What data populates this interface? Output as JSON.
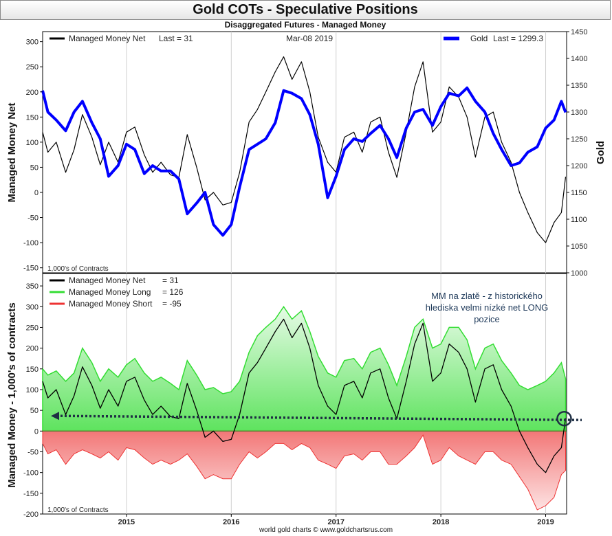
{
  "title": "Gold COTs - Speculative Positions",
  "subtitle": "Disaggregated Futures - Managed Money",
  "credit": "world gold charts © www.goldchartsrus.com",
  "colors": {
    "net": "#000000",
    "gold": "#0000ff",
    "long": "#33dd33",
    "short": "#ee3333",
    "annotation": "#1f3a5a"
  },
  "chart_data": [
    {
      "type": "line",
      "title": "",
      "date_label": "Mar-08  2019",
      "unit_note": "1,000's of Contracts",
      "ylabel": "Managed Money Net",
      "ylabel_right": "Gold",
      "xticks": [
        "2015",
        "2016",
        "2017",
        "2018",
        "2019"
      ],
      "x_range": [
        2014.2,
        2019.2
      ],
      "ylim": [
        -160,
        320
      ],
      "yticks": [
        -150,
        -100,
        -50,
        0,
        50,
        100,
        150,
        200,
        250,
        300
      ],
      "ylim_right": [
        1000,
        1450
      ],
      "yticks_right": [
        1000,
        1050,
        1100,
        1150,
        1200,
        1250,
        1300,
        1350,
        1400,
        1450
      ],
      "legend": [
        {
          "label": "Managed Money Net",
          "last_label": "Last = 31"
        },
        {
          "label": "Gold",
          "last_label": "Last = 1299.3"
        }
      ],
      "series": [
        {
          "name": "Managed Money Net",
          "axis": "left",
          "x": [
            2014.2,
            2014.25,
            2014.33,
            2014.42,
            2014.5,
            2014.58,
            2014.67,
            2014.75,
            2014.83,
            2014.92,
            2015.0,
            2015.08,
            2015.17,
            2015.25,
            2015.33,
            2015.42,
            2015.5,
            2015.58,
            2015.67,
            2015.75,
            2015.83,
            2015.92,
            2016.0,
            2016.08,
            2016.17,
            2016.25,
            2016.33,
            2016.42,
            2016.5,
            2016.58,
            2016.67,
            2016.75,
            2016.83,
            2016.92,
            2017.0,
            2017.08,
            2017.17,
            2017.25,
            2017.33,
            2017.42,
            2017.5,
            2017.58,
            2017.67,
            2017.75,
            2017.83,
            2017.92,
            2018.0,
            2018.08,
            2018.17,
            2018.25,
            2018.33,
            2018.42,
            2018.5,
            2018.58,
            2018.67,
            2018.75,
            2018.83,
            2018.92,
            2019.0,
            2019.08,
            2019.15,
            2019.19
          ],
          "values": [
            120,
            80,
            100,
            40,
            85,
            155,
            110,
            55,
            100,
            60,
            120,
            130,
            75,
            40,
            60,
            35,
            30,
            115,
            50,
            -15,
            0,
            -25,
            -20,
            40,
            140,
            165,
            200,
            240,
            270,
            225,
            260,
            200,
            110,
            60,
            40,
            110,
            120,
            80,
            140,
            150,
            80,
            30,
            120,
            210,
            260,
            120,
            140,
            210,
            190,
            150,
            70,
            150,
            160,
            100,
            60,
            0,
            -40,
            -80,
            -100,
            -60,
            -40,
            31
          ]
        },
        {
          "name": "Gold",
          "axis": "right",
          "x": [
            2014.2,
            2014.25,
            2014.33,
            2014.42,
            2014.5,
            2014.58,
            2014.67,
            2014.75,
            2014.83,
            2014.92,
            2015.0,
            2015.08,
            2015.17,
            2015.25,
            2015.33,
            2015.42,
            2015.5,
            2015.58,
            2015.67,
            2015.75,
            2015.83,
            2015.92,
            2016.0,
            2016.08,
            2016.17,
            2016.25,
            2016.33,
            2016.42,
            2016.5,
            2016.58,
            2016.67,
            2016.75,
            2016.83,
            2016.92,
            2017.0,
            2017.08,
            2017.17,
            2017.25,
            2017.33,
            2017.42,
            2017.5,
            2017.58,
            2017.67,
            2017.75,
            2017.83,
            2017.92,
            2018.0,
            2018.08,
            2018.17,
            2018.25,
            2018.33,
            2018.42,
            2018.5,
            2018.58,
            2018.67,
            2018.75,
            2018.83,
            2018.92,
            2019.0,
            2019.08,
            2019.15,
            2019.19
          ],
          "values": [
            1340,
            1300,
            1285,
            1265,
            1300,
            1320,
            1280,
            1250,
            1180,
            1200,
            1240,
            1230,
            1185,
            1200,
            1190,
            1190,
            1175,
            1110,
            1130,
            1150,
            1090,
            1070,
            1090,
            1160,
            1230,
            1240,
            1250,
            1280,
            1340,
            1335,
            1325,
            1295,
            1240,
            1140,
            1180,
            1230,
            1250,
            1245,
            1260,
            1275,
            1250,
            1215,
            1270,
            1300,
            1305,
            1275,
            1310,
            1335,
            1330,
            1345,
            1320,
            1300,
            1260,
            1230,
            1200,
            1205,
            1225,
            1235,
            1270,
            1285,
            1320,
            1299.3
          ]
        }
      ]
    },
    {
      "type": "area",
      "title": "",
      "unit_note": "1,000's of Contracts",
      "ylabel": "Managed Money - 1,000's of contracts",
      "xticks": [
        "2015",
        "2016",
        "2017",
        "2018",
        "2019"
      ],
      "x_range": [
        2014.2,
        2019.2
      ],
      "ylim": [
        -200,
        380
      ],
      "yticks": [
        -200,
        -150,
        -100,
        -50,
        0,
        50,
        100,
        150,
        200,
        250,
        300,
        350
      ],
      "annotation": "MM na zlatě - z historického hlediska velmi nízké net LONG pozice",
      "reference_level": 30,
      "legend": [
        {
          "label": "Managed Money Net",
          "last_label": "= 31"
        },
        {
          "label": "Managed Money Long",
          "last_label": "= 126"
        },
        {
          "label": "Managed Money Short",
          "last_label": "= -95"
        }
      ],
      "series": [
        {
          "name": "Managed Money Long",
          "x": [
            2014.2,
            2014.25,
            2014.33,
            2014.42,
            2014.5,
            2014.58,
            2014.67,
            2014.75,
            2014.83,
            2014.92,
            2015.0,
            2015.08,
            2015.17,
            2015.25,
            2015.33,
            2015.42,
            2015.5,
            2015.58,
            2015.67,
            2015.75,
            2015.83,
            2015.92,
            2016.0,
            2016.08,
            2016.17,
            2016.25,
            2016.33,
            2016.42,
            2016.5,
            2016.58,
            2016.67,
            2016.75,
            2016.83,
            2016.92,
            2017.0,
            2017.08,
            2017.17,
            2017.25,
            2017.33,
            2017.42,
            2017.5,
            2017.58,
            2017.67,
            2017.75,
            2017.83,
            2017.92,
            2018.0,
            2018.08,
            2018.17,
            2018.25,
            2018.33,
            2018.42,
            2018.5,
            2018.58,
            2018.67,
            2018.75,
            2018.83,
            2018.92,
            2019.0,
            2019.08,
            2019.15,
            2019.19
          ],
          "values": [
            150,
            135,
            145,
            120,
            140,
            200,
            165,
            120,
            150,
            130,
            160,
            175,
            140,
            120,
            130,
            115,
            100,
            170,
            135,
            100,
            105,
            90,
            95,
            120,
            190,
            230,
            250,
            270,
            300,
            270,
            290,
            240,
            180,
            140,
            130,
            170,
            175,
            150,
            190,
            200,
            160,
            110,
            180,
            250,
            270,
            200,
            210,
            250,
            250,
            220,
            150,
            200,
            210,
            170,
            140,
            110,
            100,
            110,
            120,
            140,
            165,
            126
          ]
        },
        {
          "name": "Managed Money Short",
          "x": [
            2014.2,
            2014.25,
            2014.33,
            2014.42,
            2014.5,
            2014.58,
            2014.67,
            2014.75,
            2014.83,
            2014.92,
            2015.0,
            2015.08,
            2015.17,
            2015.25,
            2015.33,
            2015.42,
            2015.5,
            2015.58,
            2015.67,
            2015.75,
            2015.83,
            2015.92,
            2016.0,
            2016.08,
            2016.17,
            2016.25,
            2016.33,
            2016.42,
            2016.5,
            2016.58,
            2016.67,
            2016.75,
            2016.83,
            2016.92,
            2017.0,
            2017.08,
            2017.17,
            2017.25,
            2017.33,
            2017.42,
            2017.5,
            2017.58,
            2017.67,
            2017.75,
            2017.83,
            2017.92,
            2018.0,
            2018.08,
            2018.17,
            2018.25,
            2018.33,
            2018.42,
            2018.5,
            2018.58,
            2018.67,
            2018.75,
            2018.83,
            2018.92,
            2019.0,
            2019.08,
            2019.15,
            2019.19
          ],
          "values": [
            -30,
            -55,
            -45,
            -80,
            -55,
            -45,
            -55,
            -65,
            -50,
            -70,
            -40,
            -45,
            -65,
            -80,
            -70,
            -80,
            -70,
            -55,
            -85,
            -115,
            -105,
            -115,
            -115,
            -80,
            -50,
            -65,
            -50,
            -30,
            -30,
            -45,
            -30,
            -40,
            -70,
            -80,
            -90,
            -60,
            -55,
            -70,
            -50,
            -50,
            -80,
            -80,
            -60,
            -40,
            -10,
            -80,
            -70,
            -40,
            -60,
            -70,
            -80,
            -50,
            -50,
            -70,
            -80,
            -110,
            -140,
            -190,
            -180,
            -160,
            -105,
            -95
          ]
        },
        {
          "name": "Managed Money Net",
          "x": [
            2014.2,
            2014.25,
            2014.33,
            2014.42,
            2014.5,
            2014.58,
            2014.67,
            2014.75,
            2014.83,
            2014.92,
            2015.0,
            2015.08,
            2015.17,
            2015.25,
            2015.33,
            2015.42,
            2015.5,
            2015.58,
            2015.67,
            2015.75,
            2015.83,
            2015.92,
            2016.0,
            2016.08,
            2016.17,
            2016.25,
            2016.33,
            2016.42,
            2016.5,
            2016.58,
            2016.67,
            2016.75,
            2016.83,
            2016.92,
            2017.0,
            2017.08,
            2017.17,
            2017.25,
            2017.33,
            2017.42,
            2017.5,
            2017.58,
            2017.67,
            2017.75,
            2017.83,
            2017.92,
            2018.0,
            2018.08,
            2018.17,
            2018.25,
            2018.33,
            2018.42,
            2018.5,
            2018.58,
            2018.67,
            2018.75,
            2018.83,
            2018.92,
            2019.0,
            2019.08,
            2019.15,
            2019.19
          ],
          "values": [
            120,
            80,
            100,
            40,
            85,
            155,
            110,
            55,
            100,
            60,
            120,
            130,
            75,
            40,
            60,
            35,
            30,
            115,
            50,
            -15,
            0,
            -25,
            -20,
            40,
            140,
            165,
            200,
            240,
            270,
            225,
            260,
            200,
            110,
            60,
            40,
            110,
            120,
            80,
            140,
            150,
            80,
            30,
            120,
            210,
            260,
            120,
            140,
            210,
            190,
            150,
            70,
            150,
            160,
            100,
            60,
            0,
            -40,
            -80,
            -100,
            -60,
            -40,
            31
          ]
        }
      ]
    }
  ]
}
